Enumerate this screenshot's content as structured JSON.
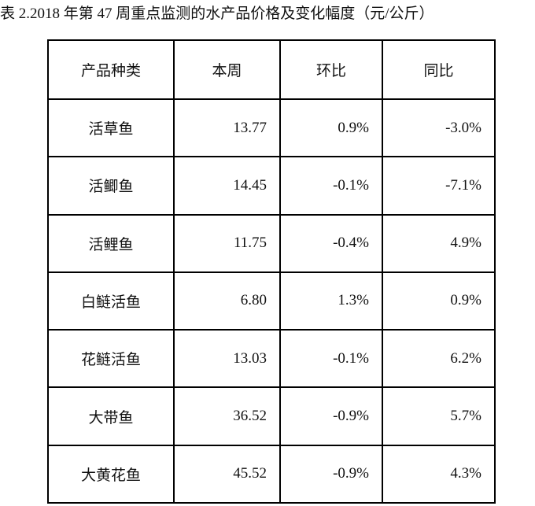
{
  "title": "表 2.2018 年第 47 周重点监测的水产品价格及变化幅度（元/公斤）",
  "table": {
    "header": [
      "产品种类",
      "本周",
      "环比",
      "同比"
    ],
    "rows": [
      [
        "活草鱼",
        "13.77",
        "0.9%",
        "-3.0%"
      ],
      [
        "活鲫鱼",
        "14.45",
        "-0.1%",
        "-7.1%"
      ],
      [
        "活鲤鱼",
        "11.75",
        "-0.4%",
        "4.9%"
      ],
      [
        "白鲢活鱼",
        "6.80",
        "1.3%",
        "0.9%"
      ],
      [
        "花鲢活鱼",
        "13.03",
        "-0.1%",
        "6.2%"
      ],
      [
        "大带鱼",
        "36.52",
        "-0.9%",
        "5.7%"
      ],
      [
        "大黄花鱼",
        "45.52",
        "-0.9%",
        "4.3%"
      ]
    ]
  }
}
